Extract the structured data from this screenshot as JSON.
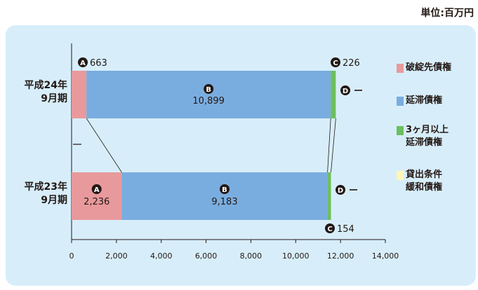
{
  "unit_label": "単位:百万円",
  "chart_data": {
    "type": "bar",
    "orientation": "horizontal",
    "stacked": true,
    "categories": [
      "平成24年\n9月期",
      "平成23年\n9月期"
    ],
    "xlim": [
      0,
      14000
    ],
    "xticks": [
      "0",
      "2,000",
      "4,000",
      "6,000",
      "8,000",
      "10,000",
      "12,000",
      "14,000"
    ],
    "series": [
      {
        "name": "破綻先債権",
        "key": "A",
        "color": "#e8999c",
        "values": [
          663,
          2236
        ],
        "labels": [
          "663",
          "2,236"
        ]
      },
      {
        "name": "延滞債権",
        "key": "B",
        "color": "#7aaddf",
        "values": [
          10899,
          9183
        ],
        "labels": [
          "10,899",
          "9,183"
        ]
      },
      {
        "name": "3ヶ月以上\n延滞債権",
        "key": "C",
        "color": "#6dbf5e",
        "values": [
          226,
          154
        ],
        "labels": [
          "226",
          "154"
        ]
      },
      {
        "name": "貸出条件\n緩和債権",
        "key": "D",
        "color": "#fff6b8",
        "values": [
          0,
          0
        ],
        "labels": [
          "ー",
          "ー"
        ]
      }
    ]
  }
}
